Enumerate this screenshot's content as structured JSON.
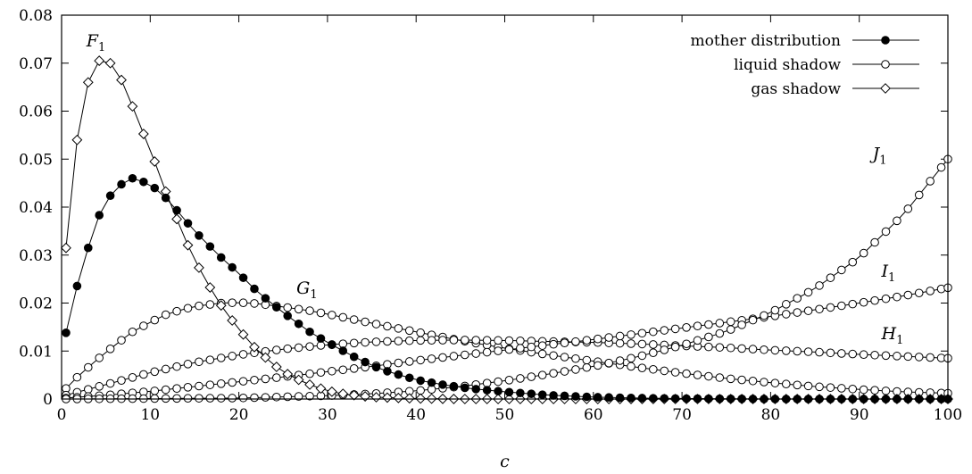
{
  "chart_data": {
    "type": "line",
    "xlabel": "c",
    "ylabel": "",
    "xlim": [
      0,
      100
    ],
    "ylim": [
      0,
      0.08
    ],
    "x_ticks": [
      "0",
      "10",
      "20",
      "30",
      "40",
      "50",
      "60",
      "70",
      "80",
      "90",
      "100"
    ],
    "y_ticks": [
      "0",
      "0.01",
      "0.02",
      "0.03",
      "0.04",
      "0.05",
      "0.06",
      "0.07",
      "0.08"
    ],
    "legend_position": "top-right",
    "legend": [
      {
        "label": "mother distribution",
        "marker": "filled-circle"
      },
      {
        "label": "liquid shadow",
        "marker": "open-circle"
      },
      {
        "label": "gas shadow",
        "marker": "open-diamond"
      }
    ],
    "annotations": [
      {
        "main": "F",
        "sub": "1",
        "x": 2.8,
        "y": 0.0735
      },
      {
        "main": "G",
        "sub": "1",
        "x": 26.5,
        "y": 0.022
      },
      {
        "main": "H",
        "sub": "1",
        "x": 92.5,
        "y": 0.0125
      },
      {
        "main": "I",
        "sub": "1",
        "x": 92.5,
        "y": 0.0255
      },
      {
        "main": "J",
        "sub": "1",
        "x": 91.5,
        "y": 0.05
      }
    ],
    "x_step": 1.25,
    "series": [
      {
        "label": "mother distribution",
        "marker": "filled-circle",
        "curve_points": [
          [
            0.5,
            0.0138
          ],
          [
            2,
            0.0255
          ],
          [
            4,
            0.0375
          ],
          [
            6,
            0.044
          ],
          [
            8,
            0.046
          ],
          [
            10,
            0.0448
          ],
          [
            12,
            0.0415
          ],
          [
            15,
            0.035
          ],
          [
            18,
            0.0295
          ],
          [
            20,
            0.0262
          ],
          [
            22,
            0.0225
          ],
          [
            25,
            0.018
          ],
          [
            28,
            0.014
          ],
          [
            30,
            0.0118
          ],
          [
            33,
            0.0088
          ],
          [
            36,
            0.0062
          ],
          [
            40,
            0.004
          ],
          [
            43,
            0.003
          ],
          [
            46,
            0.0022
          ],
          [
            50,
            0.0015
          ],
          [
            55,
            0.0008
          ],
          [
            60,
            0.0004
          ],
          [
            65,
            0.0002
          ],
          [
            70,
            0.0001
          ],
          [
            80,
            0.0
          ],
          [
            100,
            0.0
          ]
        ]
      },
      {
        "label": "gas shadow",
        "marker": "open-diamond",
        "curve_points": [
          [
            0.5,
            0.0315
          ],
          [
            1.5,
            0.051
          ],
          [
            2.5,
            0.063
          ],
          [
            3.5,
            0.069
          ],
          [
            4.5,
            0.071
          ],
          [
            5.5,
            0.07
          ],
          [
            6.5,
            0.0675
          ],
          [
            7.5,
            0.0635
          ],
          [
            8.5,
            0.0585
          ],
          [
            10,
            0.052
          ],
          [
            11,
            0.047
          ],
          [
            12,
            0.042
          ],
          [
            14,
            0.033
          ],
          [
            16,
            0.0255
          ],
          [
            18,
            0.0195
          ],
          [
            20,
            0.0145
          ],
          [
            22,
            0.0103
          ],
          [
            24,
            0.007
          ],
          [
            26,
            0.0046
          ],
          [
            28,
            0.003
          ],
          [
            30,
            0.0017
          ],
          [
            32,
            0.001
          ],
          [
            35,
            0.0004
          ],
          [
            40,
            0.0001
          ],
          [
            45,
            0.0
          ],
          [
            100,
            0.0
          ]
        ]
      },
      {
        "label": "liquid shadow (G1)",
        "marker": "open-circle",
        "curve_points": [
          [
            0.5,
            0.0022
          ],
          [
            2,
            0.005
          ],
          [
            4,
            0.0082
          ],
          [
            6,
            0.0112
          ],
          [
            8,
            0.014
          ],
          [
            10,
            0.016
          ],
          [
            12,
            0.0178
          ],
          [
            15,
            0.0193
          ],
          [
            18,
            0.02
          ],
          [
            20,
            0.0201
          ],
          [
            22,
            0.0199
          ],
          [
            25,
            0.0192
          ],
          [
            28,
            0.0184
          ],
          [
            30,
            0.0177
          ],
          [
            35,
            0.0158
          ],
          [
            40,
            0.014
          ],
          [
            45,
            0.0122
          ],
          [
            50,
            0.0106
          ],
          [
            55,
            0.0092
          ],
          [
            60,
            0.0079
          ],
          [
            65,
            0.0066
          ],
          [
            70,
            0.0054
          ],
          [
            75,
            0.0043
          ],
          [
            80,
            0.0034
          ],
          [
            85,
            0.0026
          ],
          [
            90,
            0.002
          ],
          [
            95,
            0.0015
          ],
          [
            100,
            0.0012
          ]
        ]
      },
      {
        "label": "liquid shadow (H1)",
        "marker": "open-circle",
        "curve_points": [
          [
            0.5,
            0.0008
          ],
          [
            5,
            0.003
          ],
          [
            10,
            0.0055
          ],
          [
            15,
            0.0076
          ],
          [
            20,
            0.0092
          ],
          [
            25,
            0.0104
          ],
          [
            30,
            0.0113
          ],
          [
            35,
            0.0119
          ],
          [
            40,
            0.0122
          ],
          [
            45,
            0.0123
          ],
          [
            50,
            0.0122
          ],
          [
            55,
            0.012
          ],
          [
            60,
            0.0118
          ],
          [
            65,
            0.0115
          ],
          [
            70,
            0.0111
          ],
          [
            75,
            0.0107
          ],
          [
            80,
            0.0102
          ],
          [
            85,
            0.0098
          ],
          [
            90,
            0.0093
          ],
          [
            95,
            0.0089
          ],
          [
            100,
            0.0085
          ]
        ]
      },
      {
        "label": "liquid shadow (I1)",
        "marker": "open-circle",
        "curve_points": [
          [
            0.5,
            0.0002
          ],
          [
            5,
            0.0008
          ],
          [
            10,
            0.0016
          ],
          [
            15,
            0.0026
          ],
          [
            20,
            0.0036
          ],
          [
            25,
            0.0046
          ],
          [
            30,
            0.0057
          ],
          [
            35,
            0.0068
          ],
          [
            40,
            0.008
          ],
          [
            45,
            0.0091
          ],
          [
            50,
            0.0102
          ],
          [
            55,
            0.0113
          ],
          [
            60,
            0.0124
          ],
          [
            65,
            0.0136
          ],
          [
            70,
            0.0148
          ],
          [
            75,
            0.016
          ],
          [
            80,
            0.0172
          ],
          [
            85,
            0.0186
          ],
          [
            90,
            0.02
          ],
          [
            95,
            0.0215
          ],
          [
            100,
            0.0232
          ]
        ]
      },
      {
        "label": "liquid shadow (J1)",
        "marker": "open-circle",
        "curve_points": [
          [
            0.5,
            0.0
          ],
          [
            10,
            0.0001
          ],
          [
            20,
            0.0002
          ],
          [
            30,
            0.0007
          ],
          [
            35,
            0.0011
          ],
          [
            40,
            0.0017
          ],
          [
            45,
            0.0026
          ],
          [
            50,
            0.0038
          ],
          [
            55,
            0.0052
          ],
          [
            60,
            0.0068
          ],
          [
            65,
            0.0088
          ],
          [
            70,
            0.0112
          ],
          [
            75,
            0.0141
          ],
          [
            80,
            0.018
          ],
          [
            85,
            0.023
          ],
          [
            90,
            0.0295
          ],
          [
            95,
            0.0385
          ],
          [
            100,
            0.05
          ]
        ]
      }
    ]
  }
}
